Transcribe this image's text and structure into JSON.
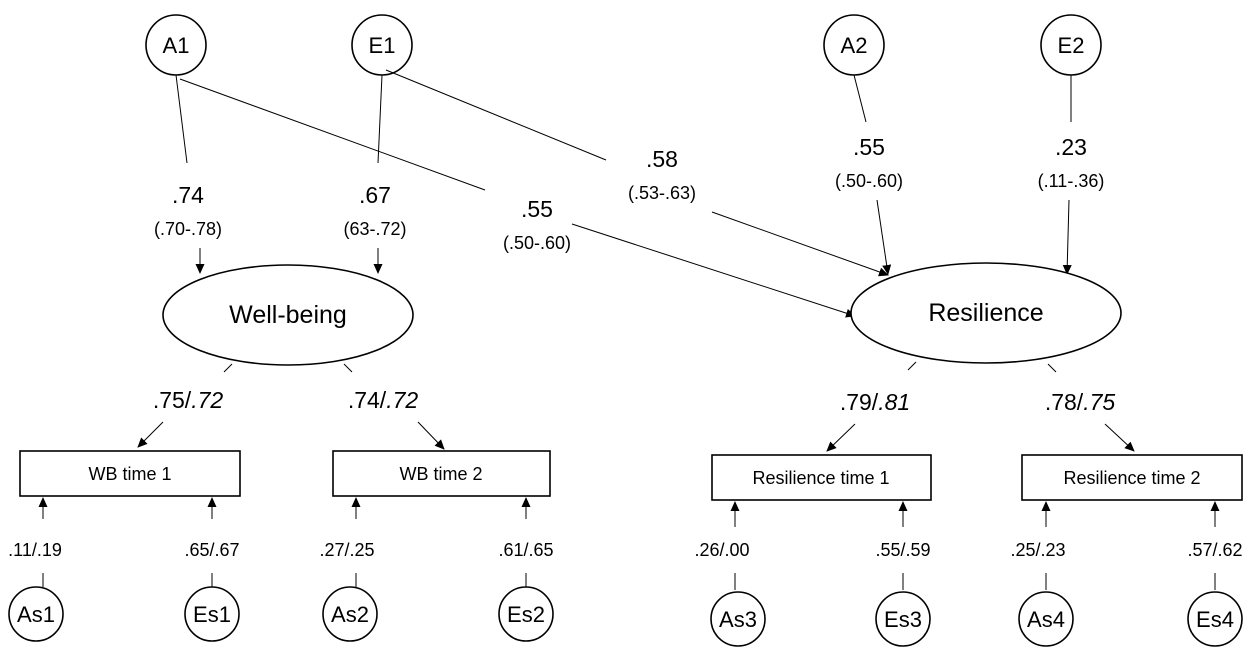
{
  "nodes": {
    "A1": "A1",
    "E1": "E1",
    "A2": "A2",
    "E2": "E2",
    "wellbeing": "Well-being",
    "resilience": "Resilience",
    "wb_time1": "WB time 1",
    "wb_time2": "WB time 2",
    "res_time1": "Resilience time 1",
    "res_time2": "Resilience time 2",
    "As1": "As1",
    "Es1": "Es1",
    "As2": "As2",
    "Es2": "Es2",
    "As3": "As3",
    "Es3": "Es3",
    "As4": "As4",
    "Es4": "Es4"
  },
  "paths": {
    "a1_wellbeing": {
      "coef": ".74",
      "ci": "(.70-.78)"
    },
    "e1_wellbeing": {
      "coef": ".67",
      "ci": "(63-.72)"
    },
    "a1_resilience": {
      "coef": ".55",
      "ci": "(.50-.60)"
    },
    "e1_resilience": {
      "coef": ".58",
      "ci": "(.53-.63)"
    },
    "a2_resilience": {
      "coef": ".55",
      "ci": "(.50-.60)"
    },
    "e2_resilience": {
      "coef": ".23",
      "ci": "(.11-.36)"
    }
  },
  "loadings": {
    "wb_t1": {
      "a": ".75/",
      "b": ".72"
    },
    "wb_t2": {
      "a": ".74/",
      "b": ".72"
    },
    "res_t1": {
      "a": ".79/",
      "b": ".81"
    },
    "res_t2": {
      "a": ".78/",
      "b": ".75"
    }
  },
  "residuals": {
    "as1": ".11/.19",
    "es1": ".65/.67",
    "as2": ".27/.25",
    "es2": ".61/.65",
    "as3": ".26/.00",
    "es3": ".55/.59",
    "as4": ".25/.23",
    "es4": ".57/.62"
  }
}
